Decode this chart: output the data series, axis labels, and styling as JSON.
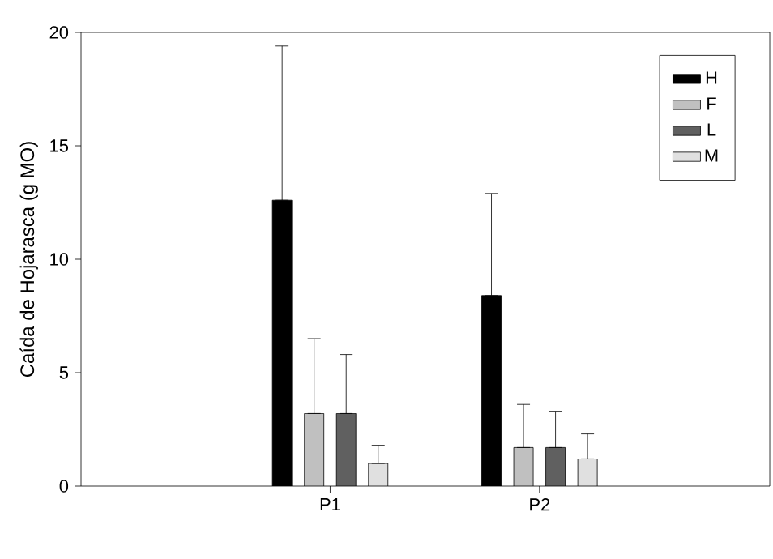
{
  "chart_data": {
    "type": "bar",
    "ylabel": "Caída de Hojarasca (g MO)",
    "categories": [
      "P1",
      "P2"
    ],
    "series": [
      {
        "name": "H",
        "color": "#000000",
        "values": [
          12.6,
          8.4
        ],
        "errors": [
          [
            12.6,
            19.4
          ],
          [
            8.4,
            12.9
          ]
        ]
      },
      {
        "name": "F",
        "color": "#c0c0c0",
        "values": [
          3.2,
          1.7
        ],
        "errors": [
          [
            3.2,
            6.5
          ],
          [
            1.7,
            3.6
          ]
        ]
      },
      {
        "name": "L",
        "color": "#606060",
        "values": [
          3.2,
          1.7
        ],
        "errors": [
          [
            3.2,
            5.8
          ],
          [
            1.7,
            3.3
          ]
        ]
      },
      {
        "name": "M",
        "color": "#e0e0e0",
        "values": [
          1.0,
          1.2
        ],
        "errors": [
          [
            1.0,
            1.8
          ],
          [
            1.2,
            2.3
          ]
        ]
      }
    ],
    "ylim": [
      0,
      20
    ],
    "yticks": [
      0,
      5,
      10,
      15,
      20
    ],
    "grid": false,
    "legend": "top right"
  }
}
